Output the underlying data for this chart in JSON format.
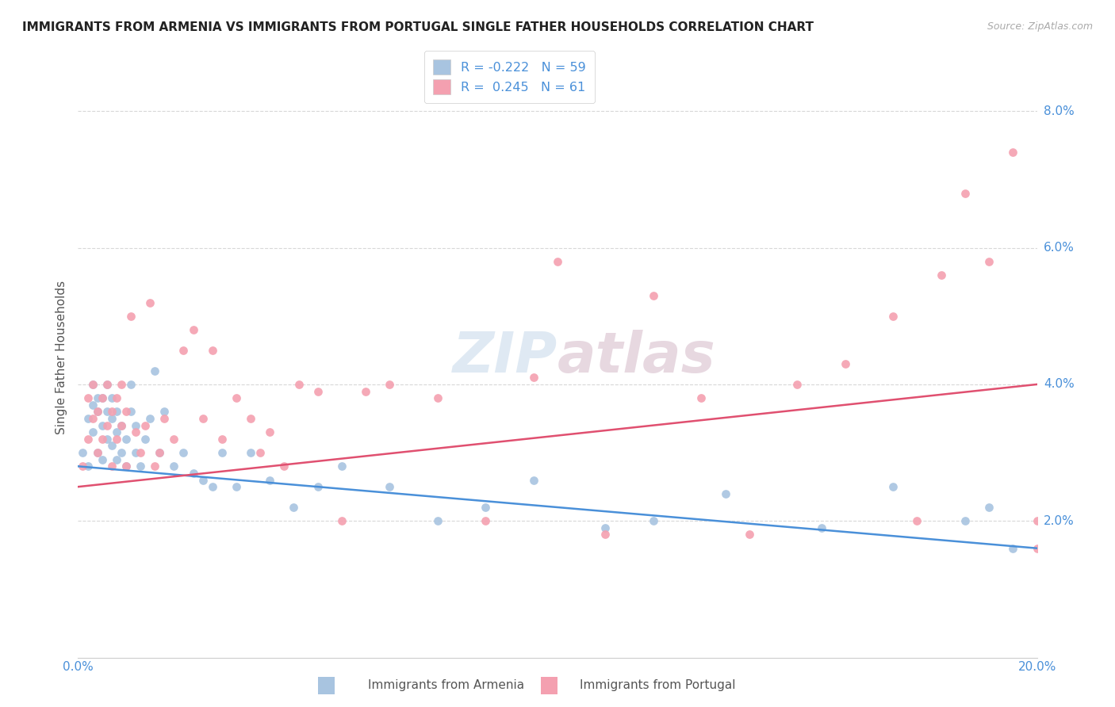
{
  "title": "IMMIGRANTS FROM ARMENIA VS IMMIGRANTS FROM PORTUGAL SINGLE FATHER HOUSEHOLDS CORRELATION CHART",
  "source": "Source: ZipAtlas.com",
  "ylabel": "Single Father Households",
  "x_min": 0.0,
  "x_max": 0.2,
  "y_min": 0.0,
  "y_max": 0.088,
  "x_ticks": [
    0.0,
    0.05,
    0.1,
    0.15,
    0.2
  ],
  "x_tick_labels": [
    "0.0%",
    "",
    "",
    "",
    "20.0%"
  ],
  "y_ticks": [
    0.02,
    0.04,
    0.06,
    0.08
  ],
  "y_tick_labels": [
    "2.0%",
    "4.0%",
    "6.0%",
    "8.0%"
  ],
  "armenia_color": "#a8c4e0",
  "portugal_color": "#f4a0b0",
  "armenia_line_color": "#4a90d9",
  "portugal_line_color": "#e05070",
  "watermark_zip": "ZIP",
  "watermark_atlas": "atlas",
  "legend_R_armenia": "-0.222",
  "legend_N_armenia": "59",
  "legend_R_portugal": "0.245",
  "legend_N_portugal": "61",
  "armenia_scatter_x": [
    0.001,
    0.002,
    0.002,
    0.003,
    0.003,
    0.003,
    0.004,
    0.004,
    0.004,
    0.005,
    0.005,
    0.005,
    0.006,
    0.006,
    0.006,
    0.007,
    0.007,
    0.007,
    0.008,
    0.008,
    0.008,
    0.009,
    0.009,
    0.01,
    0.01,
    0.011,
    0.011,
    0.012,
    0.012,
    0.013,
    0.014,
    0.015,
    0.016,
    0.017,
    0.018,
    0.02,
    0.022,
    0.024,
    0.026,
    0.028,
    0.03,
    0.033,
    0.036,
    0.04,
    0.045,
    0.05,
    0.055,
    0.065,
    0.075,
    0.085,
    0.095,
    0.11,
    0.12,
    0.135,
    0.155,
    0.17,
    0.185,
    0.19,
    0.195
  ],
  "armenia_scatter_y": [
    0.03,
    0.028,
    0.035,
    0.033,
    0.037,
    0.04,
    0.03,
    0.036,
    0.038,
    0.029,
    0.034,
    0.038,
    0.032,
    0.036,
    0.04,
    0.031,
    0.035,
    0.038,
    0.029,
    0.033,
    0.036,
    0.03,
    0.034,
    0.028,
    0.032,
    0.036,
    0.04,
    0.03,
    0.034,
    0.028,
    0.032,
    0.035,
    0.042,
    0.03,
    0.036,
    0.028,
    0.03,
    0.027,
    0.026,
    0.025,
    0.03,
    0.025,
    0.03,
    0.026,
    0.022,
    0.025,
    0.028,
    0.025,
    0.02,
    0.022,
    0.026,
    0.019,
    0.02,
    0.024,
    0.019,
    0.025,
    0.02,
    0.022,
    0.016
  ],
  "portugal_scatter_x": [
    0.001,
    0.002,
    0.002,
    0.003,
    0.003,
    0.004,
    0.004,
    0.005,
    0.005,
    0.006,
    0.006,
    0.007,
    0.007,
    0.008,
    0.008,
    0.009,
    0.009,
    0.01,
    0.01,
    0.011,
    0.012,
    0.013,
    0.014,
    0.015,
    0.016,
    0.017,
    0.018,
    0.02,
    0.022,
    0.024,
    0.026,
    0.028,
    0.03,
    0.033,
    0.036,
    0.038,
    0.04,
    0.043,
    0.046,
    0.05,
    0.055,
    0.06,
    0.065,
    0.075,
    0.085,
    0.095,
    0.1,
    0.11,
    0.12,
    0.13,
    0.14,
    0.15,
    0.16,
    0.17,
    0.175,
    0.18,
    0.185,
    0.19,
    0.195,
    0.2,
    0.2
  ],
  "portugal_scatter_y": [
    0.028,
    0.032,
    0.038,
    0.035,
    0.04,
    0.03,
    0.036,
    0.032,
    0.038,
    0.034,
    0.04,
    0.028,
    0.036,
    0.032,
    0.038,
    0.034,
    0.04,
    0.028,
    0.036,
    0.05,
    0.033,
    0.03,
    0.034,
    0.052,
    0.028,
    0.03,
    0.035,
    0.032,
    0.045,
    0.048,
    0.035,
    0.045,
    0.032,
    0.038,
    0.035,
    0.03,
    0.033,
    0.028,
    0.04,
    0.039,
    0.02,
    0.039,
    0.04,
    0.038,
    0.02,
    0.041,
    0.058,
    0.018,
    0.053,
    0.038,
    0.018,
    0.04,
    0.043,
    0.05,
    0.02,
    0.056,
    0.068,
    0.058,
    0.074,
    0.02,
    0.016
  ],
  "arm_trend_x": [
    0.0,
    0.2
  ],
  "arm_trend_y": [
    0.028,
    0.016
  ],
  "port_trend_x": [
    0.0,
    0.2
  ],
  "port_trend_y": [
    0.025,
    0.04
  ],
  "bg_color": "#ffffff",
  "grid_color": "#d8d8d8"
}
